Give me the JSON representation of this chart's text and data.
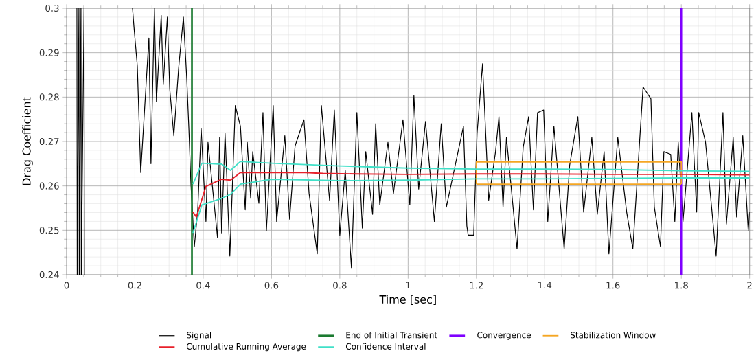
{
  "chart_data": {
    "type": "line",
    "xlabel": "Time [sec]",
    "ylabel": "Drag Coefficient",
    "xlim": [
      0,
      2
    ],
    "ylim": [
      0.24,
      0.3
    ],
    "xticks": [
      0,
      0.2,
      0.4,
      0.6,
      0.8,
      1,
      1.2,
      1.4,
      1.6,
      1.8,
      2
    ],
    "yticks": [
      0.24,
      0.25,
      0.26,
      0.27,
      0.28,
      0.29,
      0.3
    ],
    "grid": true,
    "legend": "bottom",
    "line_style": "solid",
    "series": [
      {
        "name": "Signal",
        "color": "#000000",
        "x": [
          0.03,
          0.031,
          0.036,
          0.037,
          0.042,
          0.043,
          0.051,
          0.052,
          0.1,
          0.193,
          0.197,
          0.207,
          0.217,
          0.241,
          0.247,
          0.257,
          0.263,
          0.277,
          0.283,
          0.295,
          0.302,
          0.314,
          0.328,
          0.342,
          0.352,
          0.358,
          0.364,
          0.374,
          0.384,
          0.394,
          0.408,
          0.414,
          0.442,
          0.448,
          0.454,
          0.464,
          0.478,
          0.494,
          0.509,
          0.523,
          0.529,
          0.539,
          0.545,
          0.563,
          0.575,
          0.585,
          0.605,
          0.615,
          0.639,
          0.653,
          0.669,
          0.695,
          0.71,
          0.734,
          0.746,
          0.77,
          0.784,
          0.8,
          0.816,
          0.834,
          0.85,
          0.866,
          0.876,
          0.896,
          0.905,
          0.917,
          0.941,
          0.957,
          0.985,
          1.005,
          1.017,
          1.031,
          1.051,
          1.077,
          1.097,
          1.112,
          1.162,
          1.172,
          1.176,
          1.192,
          1.202,
          1.218,
          1.236,
          1.256,
          1.266,
          1.278,
          1.288,
          1.319,
          1.337,
          1.353,
          1.367,
          1.379,
          1.397,
          1.409,
          1.427,
          1.457,
          1.473,
          1.497,
          1.514,
          1.538,
          1.554,
          1.574,
          1.588,
          1.614,
          1.64,
          1.658,
          1.688,
          1.711,
          1.721,
          1.739,
          1.749,
          1.769,
          1.781,
          1.791,
          1.805,
          1.831,
          1.845,
          1.851,
          1.871,
          1.902,
          1.922,
          1.932,
          1.952,
          1.962,
          1.98,
          1.996,
          2.0
        ],
        "values": [
          0.3,
          0.24,
          0.3,
          0.24,
          0.3,
          0.24,
          0.3,
          0.24,
          null,
          0.3,
          0.296,
          0.287,
          0.263,
          0.2933,
          0.265,
          0.3,
          0.279,
          0.2984,
          0.2828,
          0.298,
          0.2818,
          0.2713,
          0.2865,
          0.298,
          0.2839,
          0.2729,
          0.2604,
          0.2463,
          0.2546,
          0.2729,
          0.252,
          0.2698,
          0.2483,
          0.2709,
          0.2494,
          0.2718,
          0.2442,
          0.2781,
          0.2734,
          0.2546,
          0.2698,
          0.2572,
          0.2677,
          0.2561,
          0.2765,
          0.2499,
          0.2781,
          0.252,
          0.2713,
          0.2525,
          0.269,
          0.2749,
          0.2583,
          0.2447,
          0.2781,
          0.2568,
          0.2771,
          0.2489,
          0.2635,
          0.2416,
          0.2765,
          0.2505,
          0.2677,
          0.2536,
          0.274,
          0.2557,
          0.2698,
          0.2583,
          0.2749,
          0.2557,
          0.2803,
          0.2593,
          0.2745,
          0.252,
          0.274,
          0.2552,
          0.2734,
          0.251,
          0.2489,
          0.2489,
          0.2718,
          0.2875,
          0.2568,
          0.2677,
          0.2756,
          0.2552,
          0.2709,
          0.2458,
          0.2687,
          0.2756,
          0.2546,
          0.2765,
          0.2771,
          0.252,
          0.2734,
          0.2458,
          0.2646,
          0.2756,
          0.2541,
          0.2709,
          0.2536,
          0.2677,
          0.2447,
          0.2709,
          0.2541,
          0.2458,
          0.2823,
          0.2796,
          0.2552,
          0.2463,
          0.2677,
          0.2671,
          0.252,
          0.2698,
          0.252,
          0.2765,
          0.2541,
          0.2765,
          0.2698,
          0.2442,
          0.2765,
          0.2514,
          0.2709,
          0.253,
          0.2713,
          0.2499,
          0.2541
        ]
      },
      {
        "name": "Stabilization Window",
        "color": "#f5a623",
        "x": [
          1.2,
          1.2,
          1.8,
          1.8
        ],
        "values": [
          0.2604,
          0.2654,
          0.2654,
          0.2604
        ]
      },
      {
        "color": "#f5a623",
        "x": [
          1.2,
          1.8
        ],
        "values": [
          0.2604,
          0.2604
        ]
      },
      {
        "name": "Cumulative Running Average",
        "color": "#e8202a",
        "x": [
          0.37,
          0.38,
          0.408,
          0.454,
          0.48,
          0.509,
          0.6,
          0.7,
          0.75,
          0.85,
          1.0,
          1.2,
          1.4,
          1.6,
          1.8,
          2.0
        ],
        "values": [
          0.2541,
          0.253,
          0.2599,
          0.2615,
          0.2613,
          0.263,
          0.263,
          0.263,
          0.2628,
          0.2627,
          0.2626,
          0.2627,
          0.2627,
          0.2626,
          0.2626,
          0.2625
        ]
      },
      {
        "name": "Confidence Interval",
        "color": "#40e0c8",
        "x": [
          0.37,
          0.396,
          0.454,
          0.48,
          0.509,
          0.6,
          0.8,
          1.0,
          1.2,
          1.4,
          1.6,
          1.8,
          2.0
        ],
        "values": [
          0.2604,
          0.2651,
          0.2649,
          0.2635,
          0.2655,
          0.2651,
          0.2645,
          0.264,
          0.2638,
          0.2638,
          0.2637,
          0.2634,
          0.2633
        ]
      },
      {
        "color": "#40e0c8",
        "x": [
          0.37,
          0.396,
          0.454,
          0.48,
          0.509,
          0.6,
          0.8,
          1.0,
          1.2,
          1.4,
          1.6,
          1.8,
          2.0
        ],
        "values": [
          0.2494,
          0.2557,
          0.2572,
          0.2581,
          0.2604,
          0.2615,
          0.2612,
          0.2613,
          0.2616,
          0.2616,
          0.2617,
          0.2618,
          0.2618
        ]
      }
    ],
    "ref_lines": [
      {
        "axis": "x",
        "value": 0.367,
        "label": "End of Initial Transient",
        "color": "#1b7a30"
      },
      {
        "axis": "x",
        "value": 1.8,
        "label": "Convergence",
        "color": "#7f00ff"
      }
    ]
  }
}
